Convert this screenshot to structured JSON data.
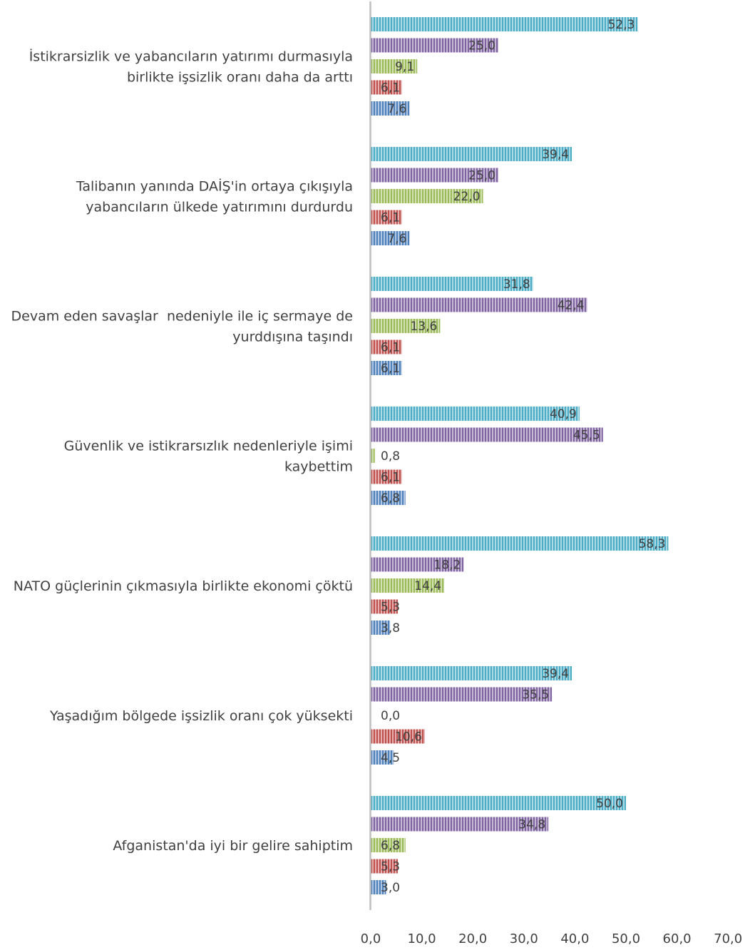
{
  "chart_data": {
    "type": "bar",
    "orientation": "horizontal",
    "categories": [
      [
        "İstikrarsizlik ve yabancıların yatırımı durmasıyla",
        "birlikte işsizlik oranı daha da arttı"
      ],
      [
        "Talibanın yanında DAİŞ'in ortaya çıkışıyla",
        "yabancıların ülkede yatırımını durdurdu"
      ],
      [
        "Devam eden savaşlar  nedeniyle ile iç sermaye de",
        "yurddışına taşındı"
      ],
      [
        "Güvenlik ve istikrarsızlık nedenleriyle işimi",
        "kaybettim"
      ],
      [
        "NATO güçlerinin çıkmasıyla birlikte ekonomi çöktü"
      ],
      [
        "Yaşadığım bölgede işsizlik oranı çok yüksekti"
      ],
      [
        "Afganistan'da iyi bir gelire sahiptim"
      ]
    ],
    "series": [
      {
        "color": "#4bacc6",
        "values": [
          52.3,
          39.4,
          31.8,
          40.9,
          58.3,
          39.4,
          50.0
        ],
        "labels": [
          "52,3",
          "39,4",
          "31,8",
          "40,9",
          "58,3",
          "39,4",
          "50,0"
        ]
      },
      {
        "color": "#8064a2",
        "values": [
          25.0,
          25.0,
          42.4,
          45.5,
          18.2,
          35.5,
          34.8
        ],
        "labels": [
          "25,0",
          "25,0",
          "42,4",
          "45,5",
          "18,2",
          "35,5",
          "34,8"
        ]
      },
      {
        "color": "#9bbb59",
        "values": [
          9.1,
          22.0,
          13.6,
          0.8,
          14.4,
          0.0,
          6.8
        ],
        "labels": [
          "9,1",
          "22,0",
          "13,6",
          "0,8",
          "14,4",
          "0,0",
          "6,8"
        ]
      },
      {
        "color": "#c0504d",
        "values": [
          6.1,
          6.1,
          6.1,
          6.1,
          5.3,
          10.6,
          5.3
        ],
        "labels": [
          "6,1",
          "6,1",
          "6,1",
          "6,1",
          "5,3",
          "10,6",
          "5,3"
        ]
      },
      {
        "color": "#4f81bd",
        "values": [
          7.6,
          7.6,
          6.1,
          6.8,
          3.8,
          4.5,
          3.0
        ],
        "labels": [
          "7,6",
          "7,6",
          "6,1",
          "6,8",
          "3,8",
          "4,5",
          "3,0"
        ]
      }
    ],
    "xlim": [
      0,
      70
    ],
    "xticks": [
      "0,0",
      "10,0",
      "20,0",
      "30,0",
      "40,0",
      "50,0",
      "60,0",
      "70,0"
    ],
    "grid": false,
    "legend": "none",
    "title": "",
    "xlabel": "",
    "ylabel": ""
  }
}
